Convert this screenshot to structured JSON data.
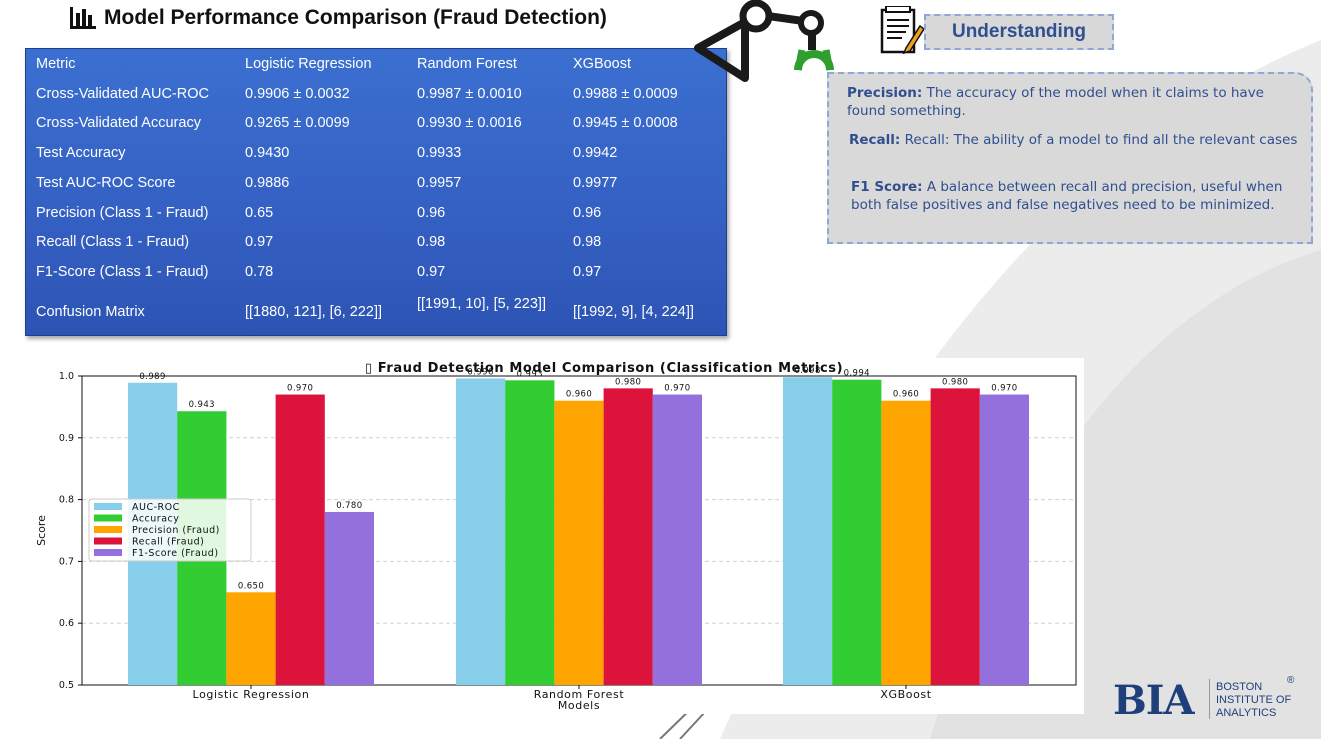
{
  "slide": {
    "title": "Model Performance Comparison (Fraud Detection)",
    "title_icon": "bar-chart-icon"
  },
  "table": {
    "headers": [
      "Metric",
      "Logistic Regression",
      "Random Forest",
      "XGBoost"
    ],
    "rows": [
      [
        "Cross-Validated AUC-ROC",
        "0.9906 ± 0.0032",
        "0.9987 ± 0.0010",
        "0.9988 ± 0.0009"
      ],
      [
        "Cross-Validated Accuracy",
        "0.9265 ± 0.0099",
        "0.9930 ± 0.0016",
        "0.9945 ± 0.0008"
      ],
      [
        "Test Accuracy",
        "0.9430",
        "0.9933",
        "0.9942"
      ],
      [
        "Test AUC-ROC Score",
        "0.9886",
        "0.9957",
        "0.9977"
      ],
      [
        "Precision (Class 1 - Fraud)",
        "0.65",
        "0.96",
        "0.96"
      ],
      [
        "Recall (Class 1 - Fraud)",
        "0.97",
        "0.98",
        "0.98"
      ],
      [
        "F1-Score (Class 1 - Fraud)",
        "0.78",
        "0.97",
        "0.97"
      ],
      [
        "Confusion Matrix",
        "[[1880, 121], [6, 222]]",
        "[[1991, 10], [5, 223]]",
        "[[1992, 9], [4, 224]]"
      ]
    ]
  },
  "understanding": {
    "heading": "Understanding",
    "icon": "notes-pen-icon",
    "items": [
      {
        "term": "Precision:",
        "text": " The accuracy of the model when it claims to have found something."
      },
      {
        "term": "Recall:",
        "text": " Recall: The ability of a model to find all the relevant cases"
      },
      {
        "term": "F1 Score:",
        "text": " A balance between recall and precision, useful when both false positives and false negatives need to be minimized."
      }
    ]
  },
  "decor": {
    "robot_icon": "robot-arm-icon"
  },
  "logo": {
    "mark": "BIA",
    "line1": "BOSTON",
    "line2": "INSTITUTE OF",
    "line3": "ANALYTICS",
    "reg": "®"
  },
  "colors": {
    "table_bg": "#3566c8",
    "understanding_text": "#2f4f8f",
    "logo": "#1f3f7a"
  },
  "chart_data": {
    "type": "bar",
    "title": "▯ Fraud Detection Model Comparison (Classification Metrics)",
    "xlabel": "Models",
    "ylabel": "Score",
    "ylim": [
      0.5,
      1.0
    ],
    "yticks": [
      "0.5",
      "0.6",
      "0.7",
      "0.8",
      "0.9",
      "1.0"
    ],
    "grid": true,
    "legend_position": "center-left",
    "categories": [
      "Logistic Regression",
      "Random Forest",
      "XGBoost"
    ],
    "series": [
      {
        "name": "AUC-ROC",
        "color": "#87ceeb",
        "values": [
          0.989,
          0.996,
          0.998
        ],
        "labels": [
          "0.989",
          "0.996",
          "0.998"
        ]
      },
      {
        "name": "Accuracy",
        "color": "#32cd32",
        "values": [
          0.943,
          0.993,
          0.994
        ],
        "labels": [
          "0.943",
          "0.993",
          "0.994"
        ]
      },
      {
        "name": "Precision (Fraud)",
        "color": "#ffa500",
        "values": [
          0.65,
          0.96,
          0.96
        ],
        "labels": [
          "0.650",
          "0.960",
          "0.960"
        ]
      },
      {
        "name": "Recall (Fraud)",
        "color": "#dc143c",
        "values": [
          0.97,
          0.98,
          0.98
        ],
        "labels": [
          "0.970",
          "0.980",
          "0.980"
        ]
      },
      {
        "name": "F1-Score (Fraud)",
        "color": "#9370db",
        "values": [
          0.78,
          0.97,
          0.97
        ],
        "labels": [
          "0.780",
          "0.970",
          "0.970"
        ]
      }
    ]
  }
}
